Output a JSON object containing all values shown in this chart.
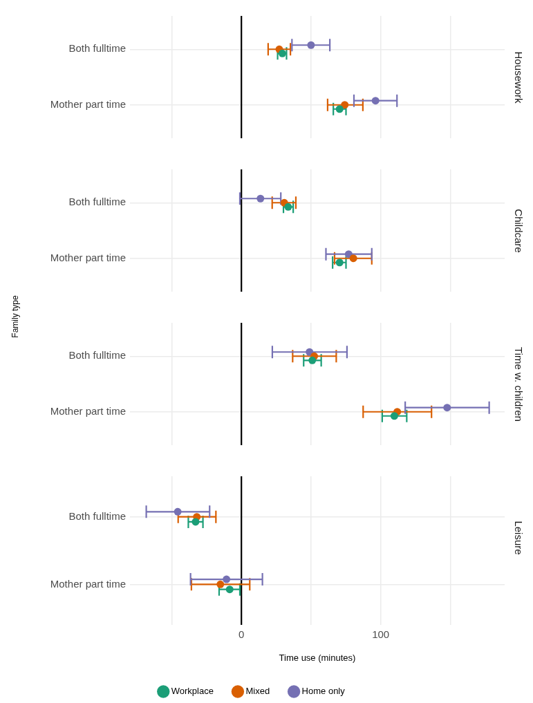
{
  "chart_data": [
    {
      "type": "scatter",
      "y2label": "Housework",
      "orientation": "horizontal",
      "categories": [
        "Both fulltime",
        "Mother part time"
      ],
      "xlim": [
        -80,
        189
      ],
      "xticks": [
        {
          "value": -50,
          "label": null
        },
        {
          "value": 0,
          "label": null
        },
        {
          "value": 50,
          "label": null
        },
        {
          "value": 100,
          "label": null
        },
        {
          "value": 150,
          "label": null
        }
      ],
      "grid": true,
      "marker": "circle",
      "tick_labels": "y",
      "ref_lines": [
        {
          "axis": "x",
          "value": 0,
          "color": "#000000"
        }
      ],
      "series": [
        {
          "color": "#1b9e77",
          "values": [
            29.4,
            70.5
          ],
          "errors": [
            [
              26,
              32.4
            ],
            [
              66,
              75.1
            ]
          ]
        },
        {
          "color": "#d95f02",
          "values": [
            27.2,
            74.2
          ],
          "errors": [
            [
              19.2,
              35.2
            ],
            [
              61.9,
              87.2
            ]
          ]
        },
        {
          "color": "#7570b3",
          "values": [
            50,
            96.3
          ],
          "errors": [
            [
              36.3,
              63.5
            ],
            [
              80.8,
              111.7
            ]
          ]
        }
      ]
    },
    {
      "type": "scatter",
      "y2label": "Childcare",
      "orientation": "horizontal",
      "categories": [
        "Both fulltime",
        "Mother part time"
      ],
      "xlim": [
        -80,
        189
      ],
      "xticks": [
        {
          "value": -50,
          "label": null
        },
        {
          "value": 0,
          "label": null
        },
        {
          "value": 50,
          "label": null
        },
        {
          "value": 100,
          "label": null
        },
        {
          "value": 150,
          "label": null
        }
      ],
      "grid": true,
      "marker": "circle",
      "tick_labels": "y",
      "ref_lines": [
        {
          "axis": "x",
          "value": 0,
          "color": "#000000"
        }
      ],
      "series": [
        {
          "color": "#1b9e77",
          "values": [
            33.6,
            70.5
          ],
          "errors": [
            [
              30.2,
              37.2
            ],
            [
              65.5,
              75.1
            ]
          ]
        },
        {
          "color": "#d95f02",
          "values": [
            30.8,
            80.4
          ],
          "errors": [
            [
              22.1,
              39.1
            ],
            [
              66.9,
              93.6
            ]
          ]
        },
        {
          "color": "#7570b3",
          "values": [
            13.7,
            77
          ],
          "errors": [
            [
              -1.1,
              28.3
            ],
            [
              60.7,
              93.6
            ]
          ]
        }
      ]
    },
    {
      "type": "scatter",
      "y2label": "Time w. children",
      "ylabel": "Family type",
      "orientation": "horizontal",
      "categories": [
        "Both fulltime",
        "Mother part time"
      ],
      "xlim": [
        -80,
        189
      ],
      "xticks": [
        {
          "value": -50,
          "label": null
        },
        {
          "value": 0,
          "label": null
        },
        {
          "value": 50,
          "label": null
        },
        {
          "value": 100,
          "label": null
        },
        {
          "value": 150,
          "label": null
        }
      ],
      "grid": true,
      "marker": "circle",
      "tick_labels": "y",
      "ref_lines": [
        {
          "axis": "x",
          "value": 0,
          "color": "#000000"
        }
      ],
      "series": [
        {
          "color": "#1b9e77",
          "values": [
            50.9,
            109.8
          ],
          "errors": [
            [
              44.7,
              57.3
            ],
            [
              101.1,
              118.7
            ]
          ]
        },
        {
          "color": "#d95f02",
          "values": [
            52.3,
            111.9
          ],
          "errors": [
            [
              36.8,
              68.1
            ],
            [
              87.4,
              136.5
            ]
          ]
        },
        {
          "color": "#7570b3",
          "values": [
            48.9,
            147.7
          ],
          "errors": [
            [
              22.2,
              75.8
            ],
            [
              117.6,
              177.9
            ]
          ]
        }
      ]
    },
    {
      "type": "scatter",
      "y2label": "Leisure",
      "xlabel": "Time use (minutes)",
      "orientation": "horizontal",
      "categories": [
        "Both fulltime",
        "Mother part time"
      ],
      "xlim": [
        -80,
        189
      ],
      "xticks": [
        {
          "value": -50,
          "label": null
        },
        0,
        {
          "value": 50,
          "label": null
        },
        100,
        {
          "value": 150,
          "label": null
        }
      ],
      "grid": true,
      "marker": "circle",
      "legend": "bottom",
      "ref_lines": [
        {
          "axis": "x",
          "value": 0,
          "color": "#000000"
        }
      ],
      "series": [
        {
          "name": "Workplace",
          "color": "#1b9e77",
          "values": [
            -32.9,
            -8.4
          ],
          "errors": [
            [
              -38.1,
              -27.6
            ],
            [
              -16,
              -1.1
            ]
          ]
        },
        {
          "name": "Mixed",
          "color": "#d95f02",
          "values": [
            -32,
            -15.1
          ],
          "errors": [
            [
              -45.4,
              -18.3
            ],
            [
              -35.9,
              6
            ]
          ]
        },
        {
          "name": "Home only",
          "color": "#7570b3",
          "values": [
            -45.7,
            -10.7
          ],
          "errors": [
            [
              -68.3,
              -22.8
            ],
            [
              -36.5,
              15.1
            ]
          ]
        }
      ]
    }
  ]
}
